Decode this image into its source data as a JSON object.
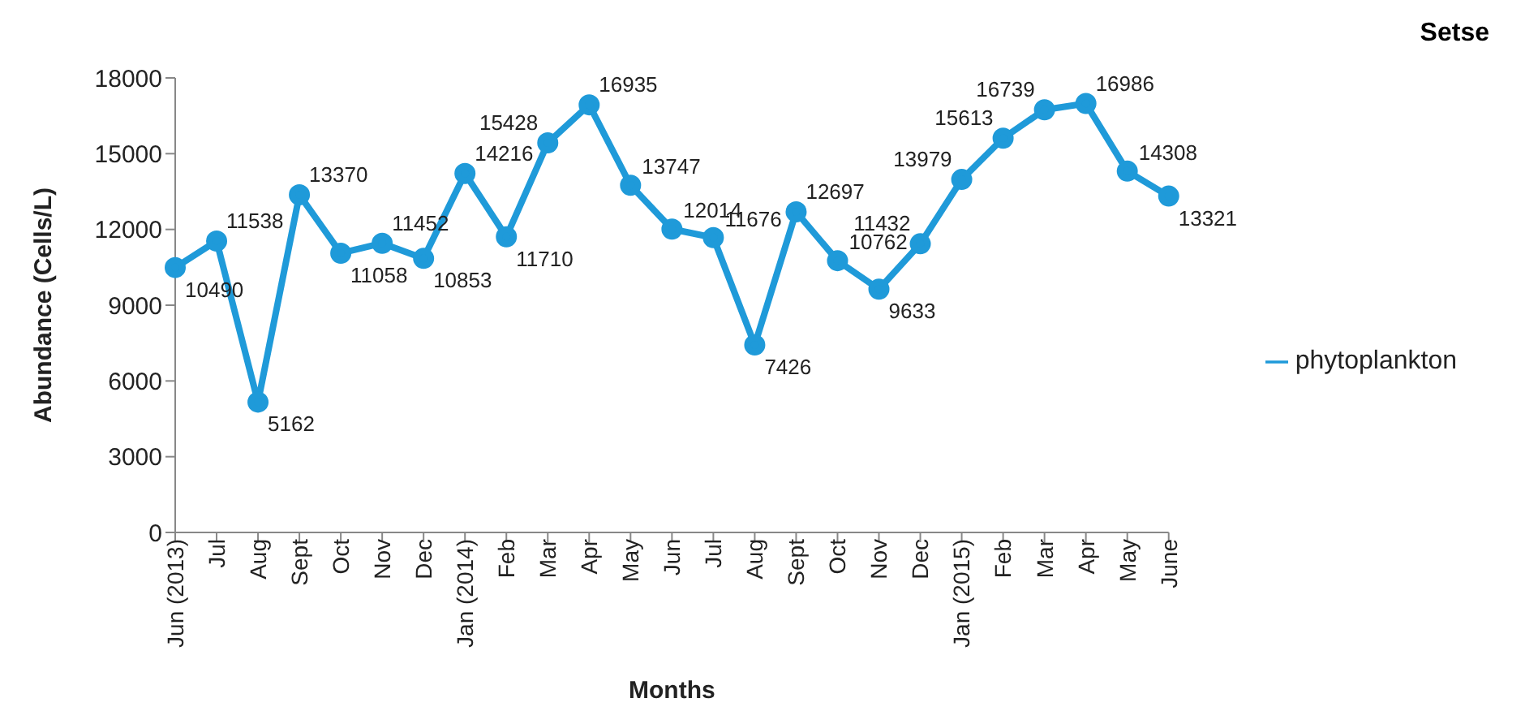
{
  "chart_data": {
    "type": "line",
    "title": "Setse",
    "xlabel": "Months",
    "ylabel": "Abundance (Cells/L)",
    "categories": [
      "Jun (2013)",
      "Jul",
      "Aug",
      "Sept",
      "Oct",
      "Nov",
      "Dec",
      "Jan (2014)",
      "Feb",
      "Mar",
      "Apr",
      "May",
      "Jun",
      "Jul",
      "Aug",
      "Sept",
      "Oct",
      "Nov",
      "Dec",
      "Jan (2015)",
      "Feb",
      "Mar",
      "Apr",
      "May",
      "June"
    ],
    "series": [
      {
        "name": "phytoplankton",
        "color": "#1f9ad9",
        "values": [
          10490,
          11538,
          5162,
          13370,
          11058,
          11452,
          10853,
          14216,
          11710,
          15428,
          16935,
          13747,
          12014,
          11676,
          7426,
          12697,
          10762,
          9633,
          11432,
          13979,
          15613,
          16739,
          16986,
          14308,
          13321
        ]
      }
    ],
    "ylim": [
      0,
      18000
    ],
    "yticks": [
      0,
      3000,
      6000,
      9000,
      12000,
      15000,
      18000
    ],
    "grid": false,
    "legend": "right",
    "marker": "circle",
    "line_style": "solid",
    "data_labels": true
  }
}
